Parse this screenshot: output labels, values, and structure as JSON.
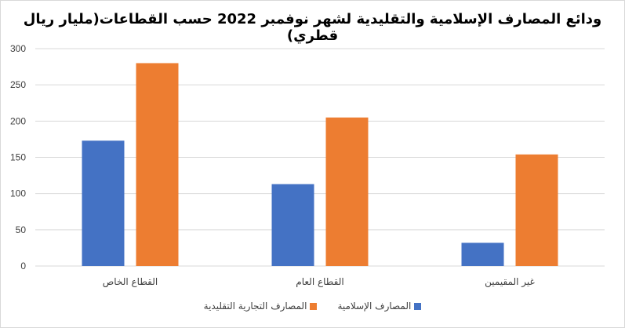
{
  "chart_data": {
    "type": "bar",
    "title": "ودائع المصارف الإسلامية والتقليدية لشهر نوفمبر 2022 حسب القطاعات(مليار ريال قطري)",
    "categories": [
      "القطاع الخاص",
      "القطاع العام",
      "غير المقيمين"
    ],
    "series": [
      {
        "name": "المصارف الإسلامية",
        "values": [
          173,
          113,
          32
        ],
        "color": "#4472C4"
      },
      {
        "name": "المصارف التجارية التقليدية",
        "values": [
          280,
          205,
          154
        ],
        "color": "#ED7D31"
      }
    ],
    "ylim": [
      0,
      300
    ],
    "yticks": [
      0,
      50,
      100,
      150,
      200,
      250,
      300
    ],
    "grid": true,
    "legend_position": "bottom"
  }
}
